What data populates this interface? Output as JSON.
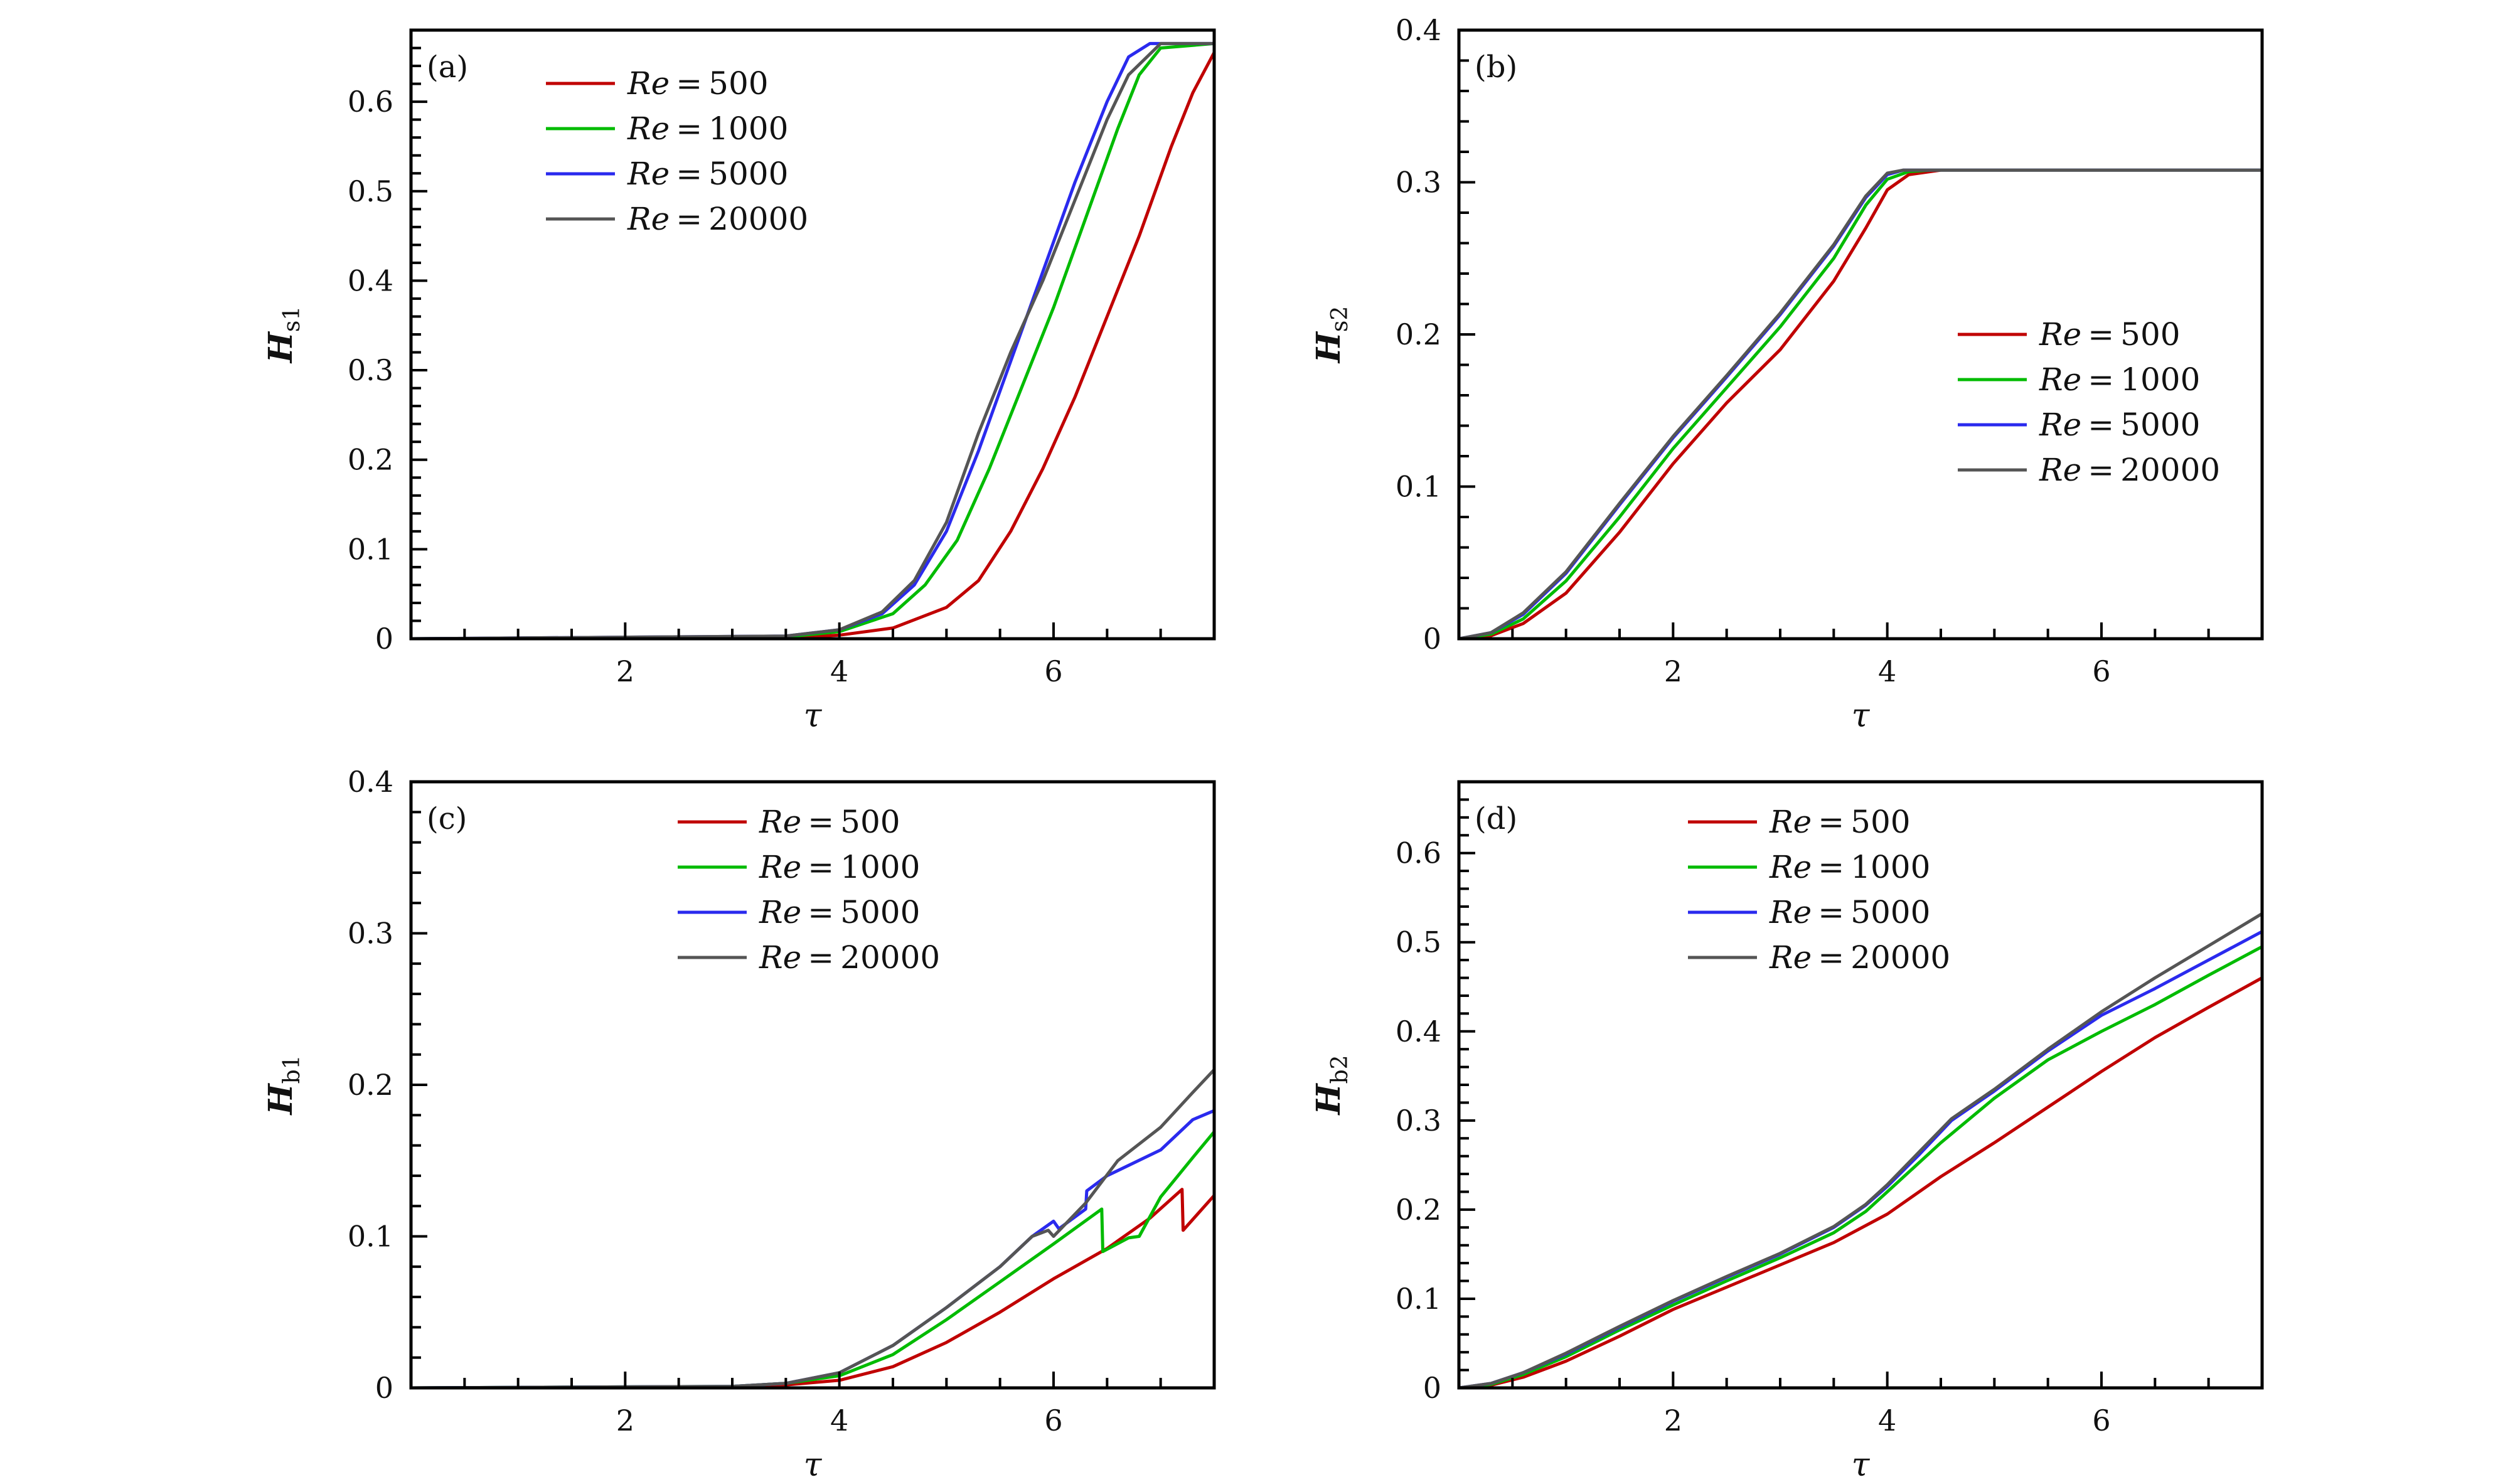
{
  "chart_data": [
    {
      "type": "line",
      "panel": "(a)",
      "xlabel": "τ",
      "ylabel": "H",
      "ylabel_sub": "s1",
      "xlim": [
        0,
        7.5
      ],
      "ylim": [
        0,
        0.68
      ],
      "xticks": [
        2,
        4,
        6
      ],
      "xtick_labels": [
        "2",
        "4",
        "6"
      ],
      "yticks": [
        0,
        0.1,
        0.2,
        0.3,
        0.4,
        0.5,
        0.6
      ],
      "ytick_labels": [
        "0",
        "0.1",
        "0.2",
        "0.3",
        "0.4",
        "0.5",
        "0.6"
      ],
      "legend_position": "top-center",
      "series": [
        {
          "name": "Re = 500",
          "label_re": "Re",
          "label_val": "500",
          "color": "#c00000",
          "x": [
            0,
            3.5,
            4.0,
            4.5,
            5.0,
            5.3,
            5.6,
            5.9,
            6.2,
            6.5,
            6.8,
            7.1,
            7.3,
            7.5
          ],
          "y": [
            0,
            0.001,
            0.004,
            0.012,
            0.035,
            0.065,
            0.12,
            0.19,
            0.27,
            0.36,
            0.45,
            0.55,
            0.61,
            0.655
          ]
        },
        {
          "name": "Re = 1000",
          "label_re": "Re",
          "label_val": "1000",
          "color": "#00bb00",
          "x": [
            0,
            3.5,
            4.0,
            4.5,
            4.8,
            5.1,
            5.4,
            5.7,
            6.0,
            6.3,
            6.6,
            6.8,
            7.0,
            7.5
          ],
          "y": [
            0,
            0.002,
            0.008,
            0.028,
            0.06,
            0.11,
            0.19,
            0.28,
            0.37,
            0.47,
            0.57,
            0.63,
            0.66,
            0.665
          ]
        },
        {
          "name": "Re = 5000",
          "label_re": "Re",
          "label_val": "5000",
          "color": "#2a2aee",
          "x": [
            0,
            3.5,
            4.0,
            4.4,
            4.7,
            5.0,
            5.3,
            5.6,
            5.9,
            6.2,
            6.5,
            6.7,
            6.9,
            7.5
          ],
          "y": [
            0,
            0.003,
            0.01,
            0.028,
            0.06,
            0.12,
            0.21,
            0.31,
            0.41,
            0.51,
            0.6,
            0.65,
            0.665,
            0.665
          ]
        },
        {
          "name": "Re = 20000",
          "label_re": "Re",
          "label_val": "20000",
          "color": "#555555",
          "x": [
            0,
            3.5,
            4.0,
            4.4,
            4.7,
            5.0,
            5.3,
            5.6,
            5.9,
            6.2,
            6.5,
            6.7,
            7.0,
            7.5
          ],
          "y": [
            0,
            0.003,
            0.01,
            0.03,
            0.065,
            0.13,
            0.23,
            0.32,
            0.4,
            0.49,
            0.58,
            0.63,
            0.665,
            0.665
          ]
        }
      ]
    },
    {
      "type": "line",
      "panel": "(b)",
      "xlabel": "τ",
      "ylabel": "H",
      "ylabel_sub": "s2",
      "xlim": [
        0,
        7.5
      ],
      "ylim": [
        0,
        0.4
      ],
      "xticks": [
        2,
        4,
        6
      ],
      "xtick_labels": [
        "2",
        "4",
        "6"
      ],
      "yticks": [
        0,
        0.1,
        0.2,
        0.3,
        0.4
      ],
      "ytick_labels": [
        "0",
        "0.1",
        "0.2",
        "0.3",
        "0.4"
      ],
      "legend_position": "center-right",
      "series": [
        {
          "name": "Re = 500",
          "label_re": "Re",
          "label_val": "500",
          "color": "#c00000",
          "x": [
            0,
            0.3,
            0.6,
            1.0,
            1.5,
            2.0,
            2.5,
            3.0,
            3.5,
            3.8,
            4.0,
            4.2,
            4.5,
            7.5
          ],
          "y": [
            0,
            0.002,
            0.01,
            0.03,
            0.07,
            0.115,
            0.155,
            0.19,
            0.235,
            0.27,
            0.295,
            0.305,
            0.308,
            0.308
          ]
        },
        {
          "name": "Re = 1000",
          "label_re": "Re",
          "label_val": "1000",
          "color": "#00bb00",
          "x": [
            0,
            0.3,
            0.6,
            1.0,
            1.5,
            2.0,
            2.5,
            3.0,
            3.5,
            3.8,
            4.0,
            4.2,
            4.4,
            7.5
          ],
          "y": [
            0,
            0.003,
            0.013,
            0.038,
            0.08,
            0.125,
            0.165,
            0.205,
            0.25,
            0.285,
            0.302,
            0.307,
            0.308,
            0.308
          ]
        },
        {
          "name": "Re = 5000",
          "label_re": "Re",
          "label_val": "5000",
          "color": "#2a2aee",
          "x": [
            0,
            0.3,
            0.6,
            1.0,
            1.5,
            2.0,
            2.5,
            3.0,
            3.5,
            3.8,
            4.0,
            4.15,
            7.5
          ],
          "y": [
            0,
            0.004,
            0.016,
            0.043,
            0.088,
            0.132,
            0.172,
            0.213,
            0.258,
            0.29,
            0.305,
            0.308,
            0.308
          ]
        },
        {
          "name": "Re = 20000",
          "label_re": "Re",
          "label_val": "20000",
          "color": "#555555",
          "x": [
            0,
            0.3,
            0.6,
            1.0,
            1.5,
            2.0,
            2.5,
            3.0,
            3.5,
            3.8,
            4.0,
            4.15,
            7.5
          ],
          "y": [
            0,
            0.004,
            0.017,
            0.044,
            0.089,
            0.133,
            0.173,
            0.214,
            0.259,
            0.291,
            0.306,
            0.308,
            0.308
          ]
        }
      ]
    },
    {
      "type": "line",
      "panel": "(c)",
      "xlabel": "τ",
      "ylabel": "H",
      "ylabel_sub": "b1",
      "xlim": [
        0,
        7.5
      ],
      "ylim": [
        0,
        0.4
      ],
      "xticks": [
        2,
        4,
        6
      ],
      "xtick_labels": [
        "2",
        "4",
        "6"
      ],
      "yticks": [
        0,
        0.1,
        0.2,
        0.3,
        0.4
      ],
      "ytick_labels": [
        "0",
        "0.1",
        "0.2",
        "0.3",
        "0.4"
      ],
      "legend_position": "top-center",
      "series": [
        {
          "name": "Re = 500",
          "label_re": "Re",
          "label_val": "500",
          "color": "#c00000",
          "x": [
            0,
            3.0,
            3.5,
            4.0,
            4.5,
            5.0,
            5.5,
            6.0,
            6.5,
            6.9,
            7.2,
            7.21,
            7.5
          ],
          "y": [
            0,
            0.0005,
            0.002,
            0.005,
            0.014,
            0.03,
            0.05,
            0.072,
            0.092,
            0.112,
            0.131,
            0.104,
            0.127
          ]
        },
        {
          "name": "Re = 1000",
          "label_re": "Re",
          "label_val": "1000",
          "color": "#00bb00",
          "x": [
            0,
            3.0,
            3.5,
            4.0,
            4.5,
            5.0,
            5.5,
            6.0,
            6.45,
            6.46,
            6.7,
            6.8,
            7.0,
            7.3,
            7.5
          ],
          "y": [
            0,
            0.001,
            0.003,
            0.008,
            0.022,
            0.045,
            0.07,
            0.095,
            0.118,
            0.09,
            0.099,
            0.1,
            0.126,
            0.152,
            0.169
          ]
        },
        {
          "name": "Re = 5000",
          "label_re": "Re",
          "label_val": "5000",
          "color": "#2a2aee",
          "x": [
            0,
            3.0,
            3.5,
            4.0,
            4.5,
            5.0,
            5.5,
            5.8,
            6.0,
            6.05,
            6.3,
            6.31,
            6.5,
            7.0,
            7.3,
            7.5
          ],
          "y": [
            0,
            0.001,
            0.003,
            0.01,
            0.028,
            0.053,
            0.08,
            0.1,
            0.11,
            0.105,
            0.118,
            0.13,
            0.14,
            0.157,
            0.177,
            0.183
          ]
        },
        {
          "name": "Re = 20000",
          "label_re": "Re",
          "label_val": "20000",
          "color": "#555555",
          "x": [
            0,
            3.0,
            3.5,
            4.0,
            4.5,
            5.0,
            5.5,
            5.8,
            5.95,
            6.0,
            6.3,
            6.6,
            7.0,
            7.3,
            7.5
          ],
          "y": [
            0,
            0.001,
            0.003,
            0.01,
            0.028,
            0.053,
            0.08,
            0.1,
            0.104,
            0.1,
            0.122,
            0.15,
            0.172,
            0.195,
            0.21
          ]
        }
      ]
    },
    {
      "type": "line",
      "panel": "(d)",
      "xlabel": "τ",
      "ylabel": "H",
      "ylabel_sub": "b2",
      "xlim": [
        0,
        7.5
      ],
      "ylim": [
        0,
        0.68
      ],
      "xticks": [
        2,
        4,
        6
      ],
      "xtick_labels": [
        "2",
        "4",
        "6"
      ],
      "yticks": [
        0,
        0.1,
        0.2,
        0.3,
        0.4,
        0.5,
        0.6
      ],
      "ytick_labels": [
        "0",
        "0.1",
        "0.2",
        "0.3",
        "0.4",
        "0.5",
        "0.6"
      ],
      "legend_position": "top-center",
      "series": [
        {
          "name": "Re = 500",
          "label_re": "Re",
          "label_val": "500",
          "color": "#c00000",
          "x": [
            0,
            0.3,
            0.6,
            1.0,
            1.5,
            2.0,
            2.5,
            3.0,
            3.5,
            4.0,
            4.5,
            5.0,
            5.5,
            6.0,
            6.5,
            7.0,
            7.5
          ],
          "y": [
            0,
            0.003,
            0.012,
            0.03,
            0.058,
            0.088,
            0.113,
            0.138,
            0.163,
            0.195,
            0.237,
            0.275,
            0.315,
            0.355,
            0.393,
            0.427,
            0.46
          ]
        },
        {
          "name": "Re = 1000",
          "label_re": "Re",
          "label_val": "1000",
          "color": "#00bb00",
          "x": [
            0,
            0.3,
            0.6,
            1.0,
            1.5,
            2.0,
            2.5,
            3.0,
            3.5,
            3.8,
            4.0,
            4.5,
            5.0,
            5.5,
            6.0,
            6.5,
            7.0,
            7.5
          ],
          "y": [
            0,
            0.004,
            0.015,
            0.035,
            0.065,
            0.093,
            0.12,
            0.146,
            0.174,
            0.198,
            0.22,
            0.275,
            0.325,
            0.368,
            0.4,
            0.43,
            0.463,
            0.495
          ]
        },
        {
          "name": "Re = 5000",
          "label_re": "Re",
          "label_val": "5000",
          "color": "#2a2aee",
          "x": [
            0,
            0.3,
            0.6,
            1.0,
            1.5,
            2.0,
            2.5,
            3.0,
            3.5,
            3.8,
            4.0,
            4.3,
            4.6,
            5.0,
            5.5,
            6.0,
            6.5,
            7.0,
            7.5
          ],
          "y": [
            0,
            0.005,
            0.017,
            0.038,
            0.068,
            0.097,
            0.124,
            0.15,
            0.18,
            0.205,
            0.226,
            0.262,
            0.3,
            0.333,
            0.378,
            0.418,
            0.448,
            0.48,
            0.512
          ]
        },
        {
          "name": "Re = 20000",
          "label_re": "Re",
          "label_val": "20000",
          "color": "#555555",
          "x": [
            0,
            0.3,
            0.6,
            1.0,
            1.5,
            2.0,
            2.5,
            3.0,
            3.5,
            3.8,
            4.0,
            4.3,
            4.6,
            5.0,
            5.5,
            6.0,
            6.5,
            7.0,
            7.5
          ],
          "y": [
            0,
            0.005,
            0.017,
            0.039,
            0.069,
            0.098,
            0.125,
            0.151,
            0.181,
            0.206,
            0.228,
            0.265,
            0.302,
            0.335,
            0.38,
            0.422,
            0.46,
            0.496,
            0.532
          ]
        }
      ]
    }
  ]
}
